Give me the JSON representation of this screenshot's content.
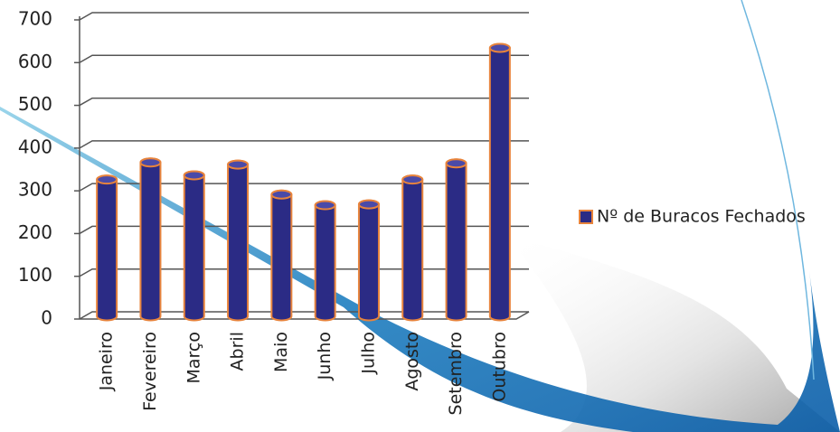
{
  "chart_data": {
    "type": "bar",
    "categories": [
      "Janeiro",
      "Fevereiro",
      "Março",
      "Abril",
      "Maio",
      "Junho",
      "Julho",
      "Agosto",
      "Setembro",
      "Outubro"
    ],
    "series": [
      {
        "name": "Nº de Buracos Fechados",
        "color": "#2b2b85",
        "values": [
          320,
          360,
          330,
          355,
          285,
          260,
          262,
          320,
          358,
          628
        ]
      }
    ],
    "edge_color": "#e8843c",
    "ylim": [
      0,
      700
    ],
    "yticks": [
      0,
      100,
      200,
      300,
      400,
      500,
      600,
      700
    ],
    "grid": true,
    "legend": "right"
  }
}
